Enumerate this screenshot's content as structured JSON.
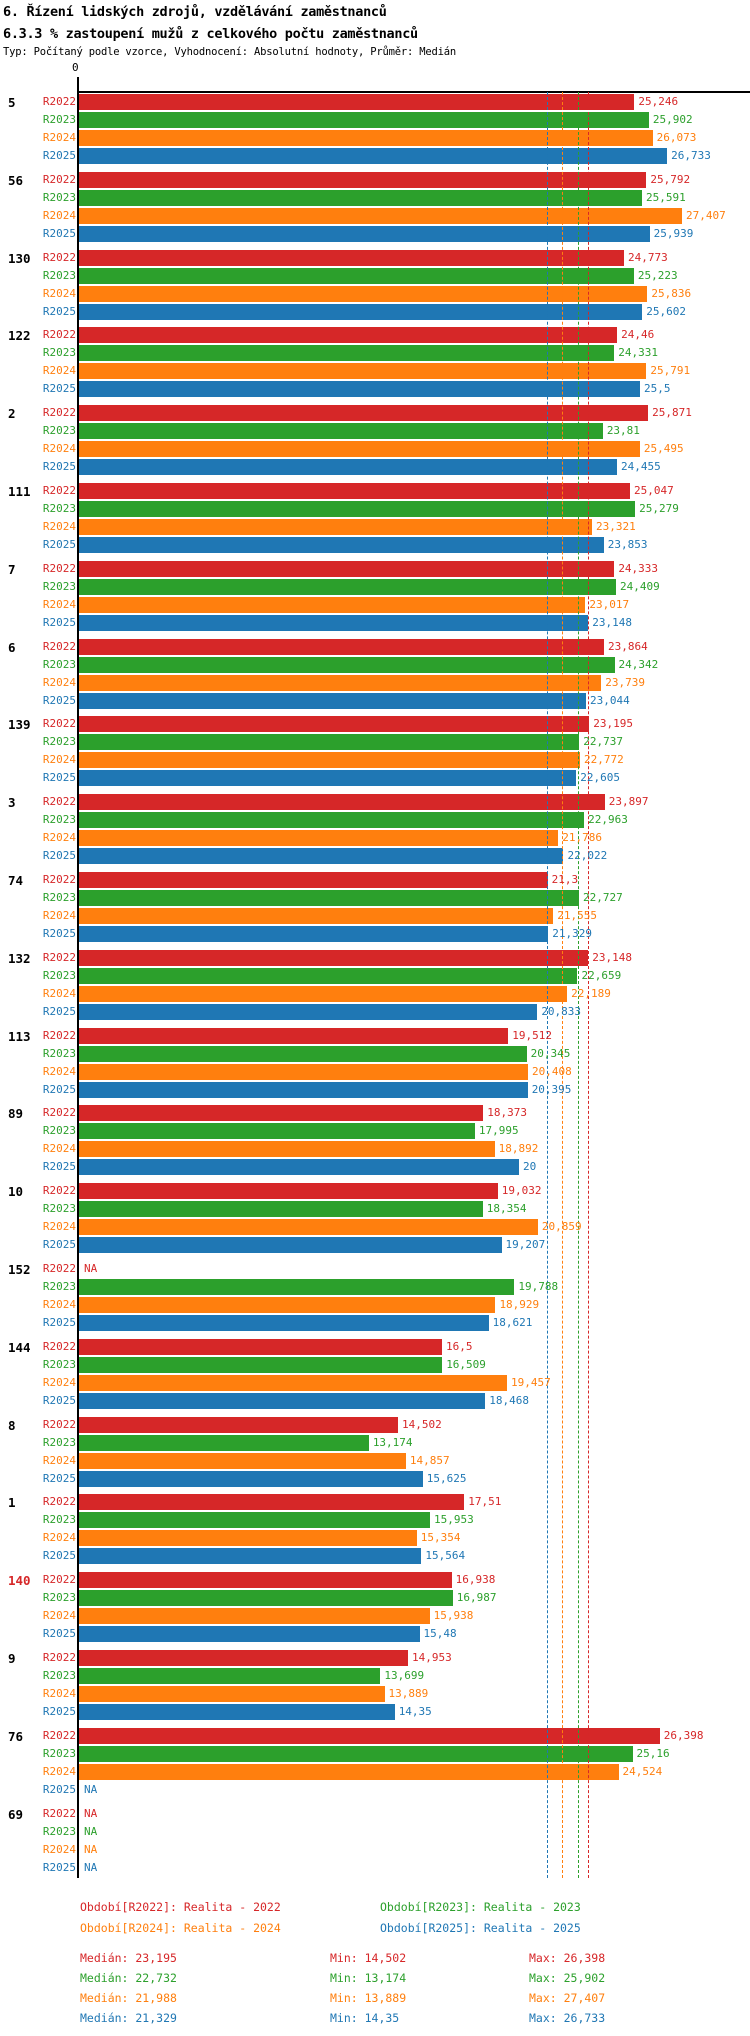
{
  "header": {
    "title1": "6. Řízení lidských zdrojů, vzdělávání zaměstnanců",
    "title2": "6.3.3 % zastoupení mužů z celkového počtu zaměstnanců",
    "subtitle": "Typ: Počítaný podle vzorce, Vyhodnocení: Absolutní hodnoty, Průměr: Medián"
  },
  "colors": {
    "R2022": "#d62728",
    "R2023": "#2ca02c",
    "R2024": "#ff7f0e",
    "R2025": "#1f77b4",
    "axis": "#000000",
    "group_label_default": "#000000"
  },
  "chart_data": {
    "type": "bar",
    "orientation": "horizontal",
    "value_unit": "%",
    "decimal_style": "comma",
    "axis_origin_label": "0",
    "xlim": [
      0,
      27.8
    ],
    "grid": false,
    "categories": [
      "5",
      "56",
      "130",
      "122",
      "2",
      "111",
      "7",
      "6",
      "139",
      "3",
      "74",
      "132",
      "113",
      "89",
      "10",
      "152",
      "144",
      "8",
      "1",
      "140",
      "9",
      "76",
      "69"
    ],
    "special_category_colors": {
      "140": "#d62728"
    },
    "series": [
      {
        "name": "R2022",
        "color": "#d62728",
        "values": [
          25.246,
          25.792,
          24.773,
          24.46,
          25.871,
          25.047,
          24.333,
          23.864,
          23.195,
          23.897,
          21.3,
          23.148,
          19.512,
          18.373,
          19.032,
          null,
          16.5,
          14.502,
          17.51,
          16.938,
          14.953,
          26.398,
          null
        ],
        "labels": [
          "25,246",
          "25,792",
          "24,773",
          "24,46",
          "25,871",
          "25,047",
          "24,333",
          "23,864",
          "23,195",
          "23,897",
          "21,3",
          "23,148",
          "19,512",
          "18,373",
          "19,032",
          "NA",
          "16,5",
          "14,502",
          "17,51",
          "16,938",
          "14,953",
          "26,398",
          "NA"
        ]
      },
      {
        "name": "R2023",
        "color": "#2ca02c",
        "values": [
          25.902,
          25.591,
          25.223,
          24.331,
          23.81,
          25.279,
          24.409,
          24.342,
          22.737,
          22.963,
          22.727,
          22.659,
          20.345,
          17.995,
          18.354,
          19.788,
          16.509,
          13.174,
          15.953,
          16.987,
          13.699,
          25.16,
          null
        ],
        "labels": [
          "25,902",
          "25,591",
          "25,223",
          "24,331",
          "23,81",
          "25,279",
          "24,409",
          "24,342",
          "22,737",
          "22,963",
          "22,727",
          "22,659",
          "20,345",
          "17,995",
          "18,354",
          "19,788",
          "16,509",
          "13,174",
          "15,953",
          "16,987",
          "13,699",
          "25,16",
          "NA"
        ]
      },
      {
        "name": "R2024",
        "color": "#ff7f0e",
        "values": [
          26.073,
          27.407,
          25.836,
          25.791,
          25.495,
          23.321,
          23.017,
          23.739,
          22.772,
          21.786,
          21.555,
          22.189,
          20.408,
          18.892,
          20.859,
          18.929,
          19.457,
          14.857,
          15.354,
          15.938,
          13.889,
          24.524,
          null
        ],
        "labels": [
          "26,073",
          "27,407",
          "25,836",
          "25,791",
          "25,495",
          "23,321",
          "23,017",
          "23,739",
          "22,772",
          "21,786",
          "21,555",
          "22,189",
          "20,408",
          "18,892",
          "20,859",
          "18,929",
          "19,457",
          "14,857",
          "15,354",
          "15,938",
          "13,889",
          "24,524",
          "NA"
        ]
      },
      {
        "name": "R2025",
        "color": "#1f77b4",
        "values": [
          26.733,
          25.939,
          25.602,
          25.5,
          24.455,
          23.853,
          23.148,
          23.044,
          22.605,
          22.022,
          21.329,
          20.833,
          20.395,
          20,
          19.207,
          18.621,
          18.468,
          15.625,
          15.564,
          15.48,
          14.35,
          null,
          null
        ],
        "labels": [
          "26,733",
          "25,939",
          "25,602",
          "25,5",
          "24,455",
          "23,853",
          "23,148",
          "23,044",
          "22,605",
          "22,022",
          "21,329",
          "20,833",
          "20,395",
          "20",
          "19,207",
          "18,621",
          "18,468",
          "15,625",
          "15,564",
          "15,48",
          "14,35",
          "NA",
          "NA"
        ]
      }
    ],
    "median_lines": [
      {
        "series": "R2022",
        "value": 23.195,
        "color": "#d62728"
      },
      {
        "series": "R2023",
        "value": 22.732,
        "color": "#2ca02c"
      },
      {
        "series": "R2024",
        "value": 21.988,
        "color": "#ff7f0e"
      },
      {
        "series": "R2025",
        "value": 21.329,
        "color": "#1f77b4"
      }
    ]
  },
  "legend": [
    {
      "series": "R2022",
      "color": "#d62728",
      "text": "Období[R2022]: Realita - 2022"
    },
    {
      "series": "R2023",
      "color": "#2ca02c",
      "text": "Období[R2023]: Realita - 2023"
    },
    {
      "series": "R2024",
      "color": "#ff7f0e",
      "text": "Období[R2024]: Realita - 2024"
    },
    {
      "series": "R2025",
      "color": "#1f77b4",
      "text": "Období[R2025]: Realita - 2025"
    }
  ],
  "stats": [
    {
      "series": "R2022",
      "color": "#d62728",
      "median": "Medián: 23,195",
      "min": "Min: 14,502",
      "max": "Max: 26,398"
    },
    {
      "series": "R2023",
      "color": "#2ca02c",
      "median": "Medián: 22,732",
      "min": "Min: 13,174",
      "max": "Max: 25,902"
    },
    {
      "series": "R2024",
      "color": "#ff7f0e",
      "median": "Medián: 21,988",
      "min": "Min: 13,889",
      "max": "Max: 27,407"
    },
    {
      "series": "R2025",
      "color": "#1f77b4",
      "median": "Medián: 21,329",
      "min": "Min: 14,35",
      "max": "Max: 26,733"
    }
  ]
}
